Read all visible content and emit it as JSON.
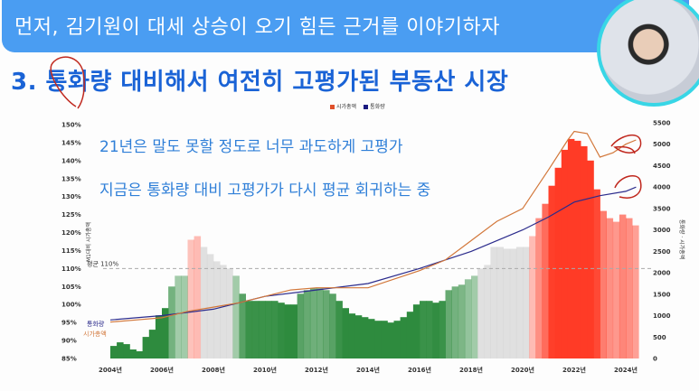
{
  "banner": {
    "text": "먼저, 김기원이 대세 상승이 오기 힘든 근거를 이야기하자"
  },
  "title": "3. 통화량 대비해서 여전히 고평가된 부동산 시장",
  "notes": [
    "21년은 말도 못할 정도로 너무 과도하게 고평가",
    "지금은 통화량 대비 고평가가 다시 평균 회귀하는 중"
  ],
  "colors": {
    "banner": "#4a9df2",
    "title": "#1a63d6",
    "note": "#2f7fd8",
    "bar_low": "#2e8b3e",
    "bar_high": "#ff3b26",
    "money_line": "#2b2b8c",
    "cap_line": "#d2773a",
    "annotation": "#c0281e",
    "webcam_border": "#38d6e6"
  },
  "chart_data": {
    "type": "bar",
    "legend": [
      {
        "name": "시가총액",
        "color": "#e0502a"
      },
      {
        "name": "통화량",
        "color": "#1a1a80"
      }
    ],
    "legend_placement": "top-center",
    "left_axis": {
      "label": "M1대비 시가총액",
      "ylim": [
        85,
        150
      ],
      "ticks": [
        "85%",
        "90%",
        "95%",
        "100%",
        "105%",
        "110%",
        "115%",
        "120%",
        "125%",
        "130%",
        "135%",
        "140%",
        "145%",
        "150%"
      ]
    },
    "right_axis": {
      "label": "통화량 · 시가총액",
      "ylim": [
        0,
        5500
      ],
      "ticks": [
        "0",
        "500",
        "1000",
        "1500",
        "2000",
        "2500",
        "3000",
        "3500",
        "4000",
        "4500",
        "5000",
        "5500"
      ]
    },
    "x_ticks": [
      "2004년",
      "2006년",
      "2008년",
      "2010년",
      "2012년",
      "2014년",
      "2016년",
      "2018년",
      "2020년",
      "2022년",
      "2024년"
    ],
    "average": {
      "label": "평균 110%",
      "value": 110
    },
    "ratio_bars": {
      "x": [
        2004,
        2004.25,
        2004.5,
        2004.75,
        2005,
        2005.25,
        2005.5,
        2005.75,
        2006,
        2006.25,
        2006.5,
        2006.75,
        2007,
        2007.25,
        2007.5,
        2007.75,
        2008,
        2008.25,
        2008.5,
        2008.75,
        2009,
        2009.25,
        2009.5,
        2009.75,
        2010,
        2010.25,
        2010.5,
        2010.75,
        2011,
        2011.25,
        2011.5,
        2011.75,
        2012,
        2012.25,
        2012.5,
        2012.75,
        2013,
        2013.25,
        2013.5,
        2013.75,
        2014,
        2014.25,
        2014.5,
        2014.75,
        2015,
        2015.25,
        2015.5,
        2015.75,
        2016,
        2016.25,
        2016.5,
        2016.75,
        2017,
        2017.25,
        2017.5,
        2017.75,
        2018,
        2018.25,
        2018.5,
        2018.75,
        2019,
        2019.25,
        2019.5,
        2019.75,
        2020,
        2020.25,
        2020.5,
        2020.75,
        2021,
        2021.25,
        2021.5,
        2021.75,
        2022,
        2022.25,
        2022.5,
        2022.75,
        2023,
        2023.25,
        2023.5,
        2023.75,
        2024,
        2024.25
      ],
      "values": [
        88.5,
        89.5,
        89,
        87.5,
        87,
        91,
        93,
        97,
        99,
        105,
        108,
        108,
        118,
        119,
        116,
        114,
        112,
        111,
        110,
        108,
        103,
        101,
        101,
        101,
        101,
        101,
        100.5,
        100,
        100,
        103,
        104,
        104.5,
        104.5,
        104,
        103,
        101,
        99,
        97.5,
        97,
        96.5,
        96,
        95.5,
        95.5,
        95,
        95.5,
        96.5,
        98,
        100,
        101,
        101,
        100.5,
        101,
        104,
        105,
        105.5,
        107,
        108,
        110,
        111,
        116,
        116,
        115.5,
        115.5,
        116,
        116,
        119,
        124,
        128,
        133,
        138,
        143,
        146,
        145.5,
        144,
        140,
        132,
        126,
        124,
        123,
        125,
        124,
        122
      ]
    },
    "series": [
      {
        "name": "통화량",
        "axis": "right",
        "x": [
          2004,
          2006,
          2008,
          2010,
          2012,
          2014,
          2016,
          2018,
          2020,
          2021,
          2022,
          2023,
          2024,
          2024.4
        ],
        "values": [
          900,
          1000,
          1150,
          1450,
          1600,
          1750,
          2100,
          2500,
          3000,
          3300,
          3650,
          3800,
          3900,
          4000
        ]
      },
      {
        "name": "시가총액",
        "axis": "right",
        "x": [
          2004,
          2005,
          2006,
          2007,
          2008,
          2009,
          2010,
          2011,
          2012,
          2014,
          2016,
          2017,
          2018,
          2019,
          2020,
          2021,
          2021.75,
          2022,
          2022.5,
          2023,
          2023.5,
          2024,
          2024.4
        ],
        "values": [
          850,
          900,
          950,
          1100,
          1200,
          1300,
          1450,
          1600,
          1650,
          1650,
          2050,
          2300,
          2750,
          3200,
          3500,
          4400,
          5100,
          5300,
          5250,
          4700,
          4800,
          5000,
          5100
        ]
      }
    ]
  }
}
